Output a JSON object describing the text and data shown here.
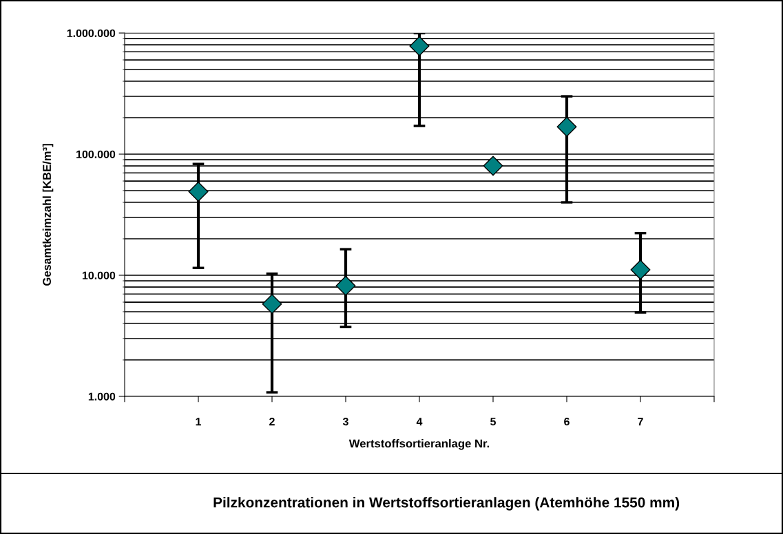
{
  "chart_data": {
    "type": "scatter",
    "title": "Pilzkonzentrationen in Wertstoffsortieranlagen (Atemhöhe 1550 mm)",
    "xlabel": "Wertstoffsortieranlage Nr.",
    "ylabel": "Gesamtkeimzahl [KBE/m³]",
    "x": [
      1,
      2,
      3,
      4,
      5,
      6,
      7
    ],
    "values": [
      49000,
      5800,
      8200,
      780000,
      80000,
      168000,
      11100
    ],
    "errors": [
      [
        11500,
        83000
      ],
      [
        1080,
        10300
      ],
      [
        3740,
        16400
      ],
      [
        171000,
        1000000
      ],
      null,
      [
        40000,
        300000
      ],
      [
        4930,
        22300
      ]
    ],
    "color": "#008080",
    "marker": "diamond",
    "log": "y",
    "grid": "y",
    "xlim": [
      0,
      8
    ],
    "xticks": [
      {
        "value": 0,
        "label": null
      },
      1,
      2,
      3,
      4,
      5,
      6,
      7,
      {
        "value": 8,
        "label": null
      }
    ],
    "ylim": [
      1000,
      1000000
    ],
    "yticks": [
      {
        "value": 1000,
        "label": "1.000"
      },
      {
        "value": 10000,
        "label": "10.000"
      },
      {
        "value": 100000,
        "label": "100.000"
      },
      {
        "value": 1000000,
        "label": "1.000.000"
      }
    ]
  }
}
